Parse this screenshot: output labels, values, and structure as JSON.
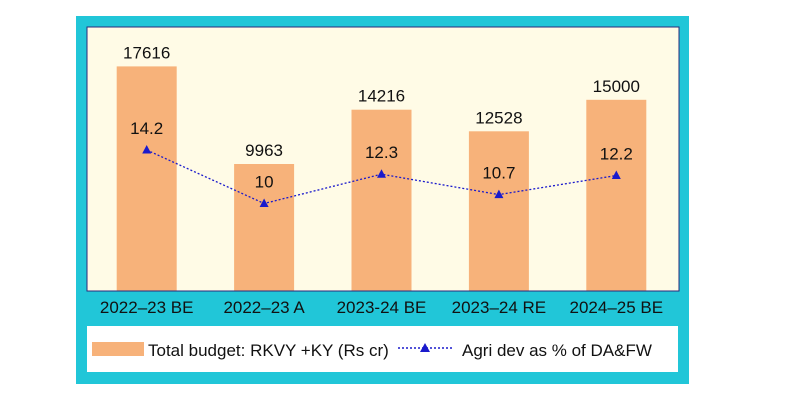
{
  "colors": {
    "outer_border": "#21c6d8",
    "plot_background": "#fffbe6",
    "legend_background": "#ffffff",
    "bar_fill": "#f7b27a",
    "line": "#1a1acc",
    "marker": "#1a1acc",
    "frame_edge": "#2a2a7a"
  },
  "legend": {
    "placement": "bottom",
    "bar_label": "Total budget: RKVY +KY (Rs cr)",
    "line_label": "Agri dev as % of DA&FW"
  },
  "chart_data": {
    "type": "bar",
    "title": "",
    "xlabel": "",
    "ylabel": "",
    "grid": false,
    "categories": [
      "2022–23 BE",
      "2022–23 A",
      "2023-24 BE",
      "2023–24 RE",
      "2024–25 BE"
    ],
    "series": [
      {
        "name": "Total budget: RKVY +KY (Rs cr)",
        "kind": "bar",
        "values": [
          17616,
          9963,
          14216,
          12528,
          15000
        ],
        "value_labels": [
          "17616",
          "9963",
          "14216",
          "12528",
          "15000"
        ],
        "ylim": [
          0,
          20000
        ]
      },
      {
        "name": "Agri dev as % of DA&FW",
        "kind": "line",
        "marker": "triangle",
        "line_style": "dotted",
        "values": [
          14.2,
          10,
          12.3,
          10.7,
          12.2
        ],
        "value_labels": [
          "14.2",
          "10",
          "12.3",
          "10.7",
          "12.2"
        ],
        "ylim": [
          0,
          20
        ]
      }
    ]
  }
}
